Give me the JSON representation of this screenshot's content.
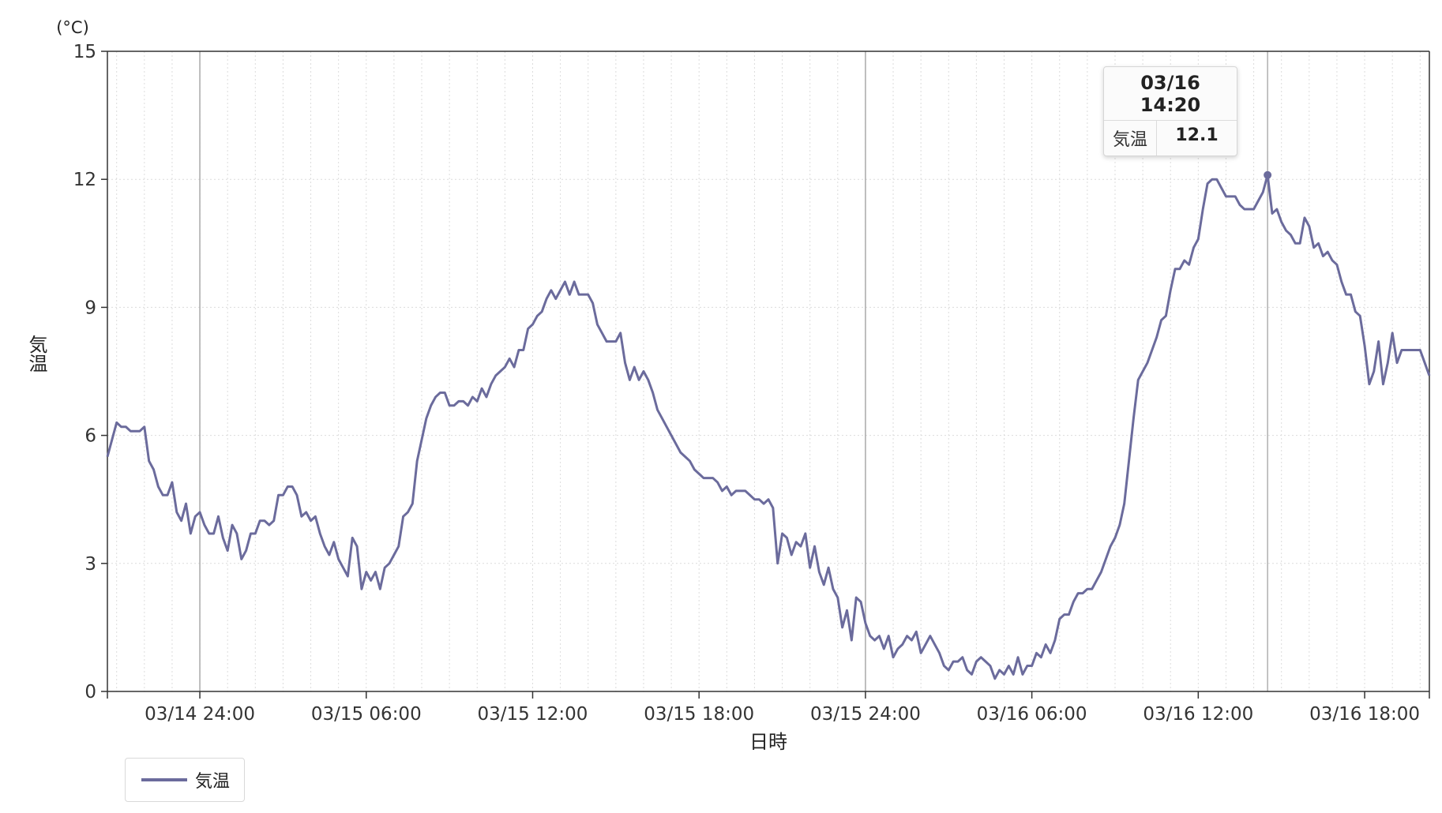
{
  "chart_data": {
    "type": "line",
    "title": "",
    "xlabel": "日時",
    "ylabel": "気温",
    "y_unit": "(°C)",
    "ylim": [
      0,
      15
    ],
    "yticks": [
      "0",
      "3",
      "6",
      "9",
      "12",
      "15"
    ],
    "xlim": [
      "03/14 21:40",
      "03/16 19:40"
    ],
    "xticks": [
      "03/14 24:00",
      "03/15 06:00",
      "03/15 12:00",
      "03/15 18:00",
      "03/15 24:00",
      "03/16 06:00",
      "03/16 12:00",
      "03/16 18:00"
    ],
    "x_interval_minutes": 10,
    "grid": true,
    "legend_position": "bottom-left",
    "series": [
      {
        "name": "気温",
        "color": "#6b6b9c",
        "values": [
          5.5,
          5.9,
          6.3,
          6.2,
          6.2,
          6.1,
          6.1,
          6.1,
          6.2,
          5.4,
          5.2,
          4.8,
          4.6,
          4.6,
          4.9,
          4.2,
          4.0,
          4.4,
          3.7,
          4.1,
          4.2,
          3.9,
          3.7,
          3.7,
          4.1,
          3.6,
          3.3,
          3.9,
          3.7,
          3.1,
          3.3,
          3.7,
          3.7,
          4.0,
          4.0,
          3.9,
          4.0,
          4.6,
          4.6,
          4.8,
          4.8,
          4.6,
          4.1,
          4.2,
          4.0,
          4.1,
          3.7,
          3.4,
          3.2,
          3.5,
          3.1,
          2.9,
          2.7,
          3.6,
          3.4,
          2.4,
          2.8,
          2.6,
          2.8,
          2.4,
          2.9,
          3.0,
          3.2,
          3.4,
          4.1,
          4.2,
          4.4,
          5.4,
          5.9,
          6.4,
          6.7,
          6.9,
          7.0,
          7.0,
          6.7,
          6.7,
          6.8,
          6.8,
          6.7,
          6.9,
          6.8,
          7.1,
          6.9,
          7.2,
          7.4,
          7.5,
          7.6,
          7.8,
          7.6,
          8.0,
          8.0,
          8.5,
          8.6,
          8.8,
          8.9,
          9.2,
          9.4,
          9.2,
          9.4,
          9.6,
          9.3,
          9.6,
          9.3,
          9.3,
          9.3,
          9.1,
          8.6,
          8.4,
          8.2,
          8.2,
          8.2,
          8.4,
          7.7,
          7.3,
          7.6,
          7.3,
          7.5,
          7.3,
          7.0,
          6.6,
          6.4,
          6.2,
          6.0,
          5.8,
          5.6,
          5.5,
          5.4,
          5.2,
          5.1,
          5.0,
          5.0,
          5.0,
          4.9,
          4.7,
          4.8,
          4.6,
          4.7,
          4.7,
          4.7,
          4.6,
          4.5,
          4.5,
          4.4,
          4.5,
          4.3,
          3.0,
          3.7,
          3.6,
          3.2,
          3.5,
          3.4,
          3.7,
          2.9,
          3.4,
          2.8,
          2.5,
          2.9,
          2.4,
          2.2,
          1.5,
          1.9,
          1.2,
          2.2,
          2.1,
          1.6,
          1.3,
          1.2,
          1.3,
          1.0,
          1.3,
          0.8,
          1.0,
          1.1,
          1.3,
          1.2,
          1.4,
          0.9,
          1.1,
          1.3,
          1.1,
          0.9,
          0.6,
          0.5,
          0.7,
          0.7,
          0.8,
          0.5,
          0.4,
          0.7,
          0.8,
          0.7,
          0.6,
          0.3,
          0.5,
          0.4,
          0.6,
          0.4,
          0.8,
          0.4,
          0.6,
          0.6,
          0.9,
          0.8,
          1.1,
          0.9,
          1.2,
          1.7,
          1.8,
          1.8,
          2.1,
          2.3,
          2.3,
          2.4,
          2.4,
          2.6,
          2.8,
          3.1,
          3.4,
          3.6,
          3.9,
          4.4,
          5.4,
          6.4,
          7.3,
          7.5,
          7.7,
          8.0,
          8.3,
          8.7,
          8.8,
          9.4,
          9.9,
          9.9,
          10.1,
          10.0,
          10.4,
          10.6,
          11.3,
          11.9,
          12.0,
          12.0,
          11.8,
          11.6,
          11.6,
          11.6,
          11.4,
          11.3,
          11.3,
          11.3,
          11.5,
          11.7,
          12.1,
          11.2,
          11.3,
          11.0,
          10.8,
          10.7,
          10.5,
          10.5,
          11.1,
          10.9,
          10.4,
          10.5,
          10.2,
          10.3,
          10.1,
          10.0,
          9.6,
          9.3,
          9.3,
          8.9,
          8.8,
          8.1,
          7.2,
          7.5,
          8.2,
          7.2,
          7.7,
          8.4,
          7.7,
          8.0,
          8.0,
          8.0,
          8.0,
          8.0,
          7.7,
          7.4
        ]
      }
    ],
    "highlighted_point": {
      "x": "03/16 14:20",
      "y": 12.1
    }
  },
  "tooltip": {
    "title": "03/16 14:20",
    "series_name": "気温",
    "value": "12.1"
  },
  "legend": {
    "label": "気温",
    "color": "#6b6b9c"
  }
}
